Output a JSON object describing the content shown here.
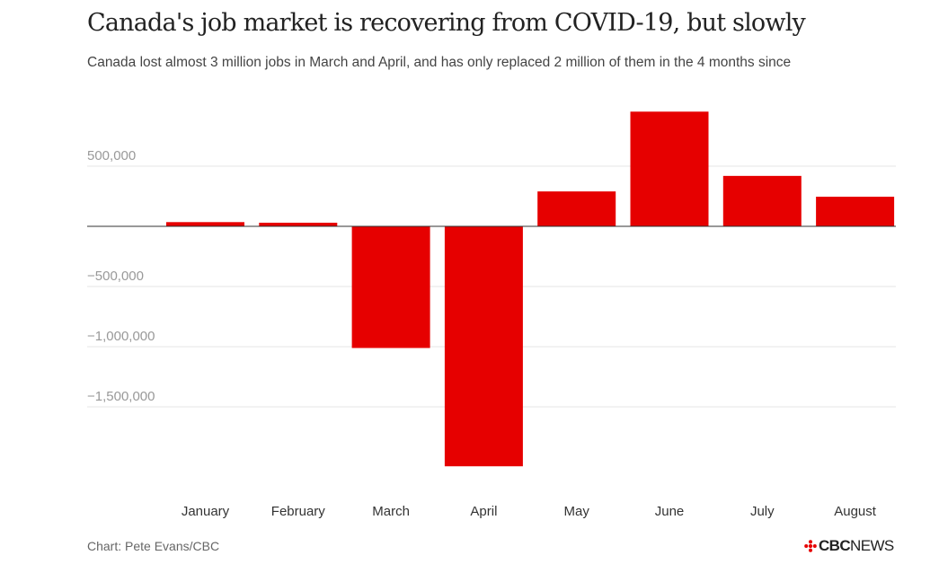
{
  "title": "Canada's job market is recovering from COVID-19, but slowly",
  "subtitle": "Canada lost almost 3 million jobs in March and April, and has only replaced 2 million of them in the 4 months since",
  "footer": {
    "credit": "Chart: Pete Evans/CBC",
    "brand_bold": "CBC",
    "brand_regular": "NEWS"
  },
  "colors": {
    "bar": "#e60000",
    "grid": "#e5e5e5",
    "zero_line": "#333333",
    "brand_gem": "#e60000"
  },
  "chart_data": {
    "type": "bar",
    "title": "Canada's job market is recovering from COVID-19, but slowly",
    "subtitle": "Canada lost almost 3 million jobs in March and April, and has only replaced 2 million of them in the 4 months since",
    "xlabel": "",
    "ylabel": "",
    "categories": [
      "January",
      "February",
      "March",
      "April",
      "May",
      "June",
      "July",
      "August"
    ],
    "values": [
      35000,
      30000,
      -1011000,
      -1994000,
      290000,
      953000,
      419000,
      246000
    ],
    "ylim": [
      -2000000,
      1000000
    ],
    "yticks": [
      500000,
      0,
      -500000,
      -1000000,
      -1500000
    ],
    "ytick_labels": [
      "500,000",
      "",
      "−500,000",
      "−1,000,000",
      "−1,500,000"
    ],
    "grid": true,
    "legend": "none"
  }
}
